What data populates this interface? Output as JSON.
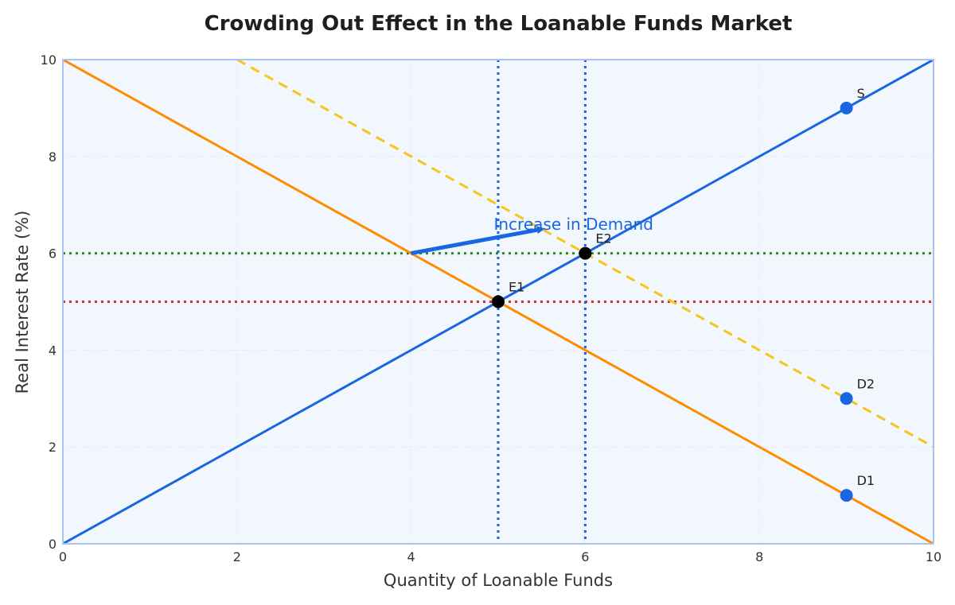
{
  "chart_data": {
    "type": "line",
    "title": "Crowding Out Effect in the Loanable Funds Market",
    "xlabel": "Quantity of Loanable Funds",
    "ylabel": "Real Interest Rate (%)",
    "xlim": [
      0,
      10
    ],
    "ylim": [
      0,
      10
    ],
    "xticks": [
      "0",
      "2",
      "4",
      "6",
      "8",
      "10"
    ],
    "yticks": [
      "0",
      "2",
      "4",
      "6",
      "8",
      "10"
    ],
    "grid": true,
    "background": "#f2f7fd",
    "frame_color": "#a7c4f2",
    "series": [
      {
        "name": "",
        "role": "supply",
        "color": "#1a66e0",
        "style": "solid",
        "x": [
          0,
          10
        ],
        "y": [
          0,
          10
        ]
      },
      {
        "name": "",
        "role": "demand-initial",
        "color": "#ff8c00",
        "style": "solid",
        "x": [
          0,
          10
        ],
        "y": [
          10,
          0
        ]
      },
      {
        "name": "",
        "role": "demand-shifted",
        "color": "#f5c518",
        "style": "dashed",
        "x": [
          2,
          10
        ],
        "y": [
          10,
          2
        ]
      }
    ],
    "reference_lines": [
      {
        "orientation": "horizontal",
        "value": 5,
        "color": "#d32f2f",
        "style": "dotted"
      },
      {
        "orientation": "horizontal",
        "value": 6,
        "color": "#2e8b22",
        "style": "dotted"
      },
      {
        "orientation": "vertical",
        "value": 5,
        "color": "#1a66e0",
        "style": "dotted"
      },
      {
        "orientation": "vertical",
        "value": 6,
        "color": "#1a66e0",
        "style": "dotted"
      }
    ],
    "points": [
      {
        "label": "E1",
        "x": 5,
        "y": 5,
        "color": "#000000"
      },
      {
        "label": "E2",
        "x": 6,
        "y": 6,
        "color": "#000000"
      },
      {
        "label": "S",
        "x": 9,
        "y": 9,
        "color": "#1a66e0"
      },
      {
        "label": "D2",
        "x": 9,
        "y": 3,
        "color": "#1a66e0"
      },
      {
        "label": "D1",
        "x": 9,
        "y": 1,
        "color": "#1a66e0"
      }
    ],
    "annotations": [
      {
        "text": "Increase in Demand",
        "color": "#1a66e0",
        "arrow_from": [
          4,
          6
        ],
        "arrow_to": [
          5.5,
          6.5
        ]
      }
    ]
  }
}
